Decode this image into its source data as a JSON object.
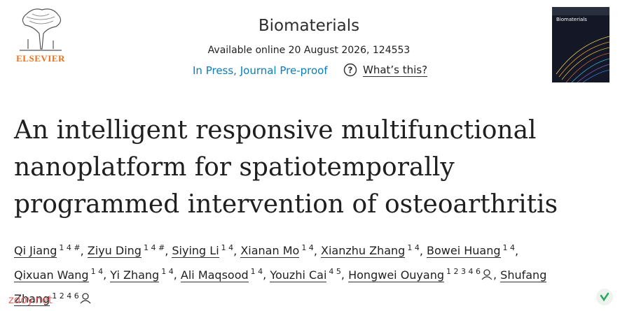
{
  "header": {
    "publisher": "ELSEVIER",
    "journal": "Biomaterials",
    "availability": "Available online 20 August 2026, 124553",
    "status": "In Press, Journal Pre-proof",
    "help": "What’s this?",
    "cover_title": "Biomaterials"
  },
  "article": {
    "title": "An intelligent responsive multifunctional nanoplatform for spatiotemporally programmed intervention of osteoarthritis",
    "author_separator": ",",
    "authors": [
      {
        "name": "Qi Jiang",
        "affiliations": "1 4 #"
      },
      {
        "name": "Ziyu Ding",
        "affiliations": "1 4 #"
      },
      {
        "name": "Siying Li",
        "affiliations": "1 4"
      },
      {
        "name": "Xianan Mo",
        "affiliations": "1 4"
      },
      {
        "name": "Xianzhu Zhang",
        "affiliations": "1 4"
      },
      {
        "name": "Bowei Huang",
        "affiliations": "1 4"
      },
      {
        "name": "Qixuan Wang",
        "affiliations": "1 4"
      },
      {
        "name": "Yi Zhang",
        "affiliations": "1 4"
      },
      {
        "name": "Ali Maqsood",
        "affiliations": "1 4"
      },
      {
        "name": "Youzhi Cai",
        "affiliations": "4 5"
      },
      {
        "name": "Hongwei Ouyang",
        "affiliations": "1 2 3 4 6",
        "corresponding": true
      },
      {
        "name": "Shufang Zhang",
        "affiliations": "1 2 4 6",
        "corresponding": true
      }
    ]
  },
  "watermark": "zdoy.net"
}
